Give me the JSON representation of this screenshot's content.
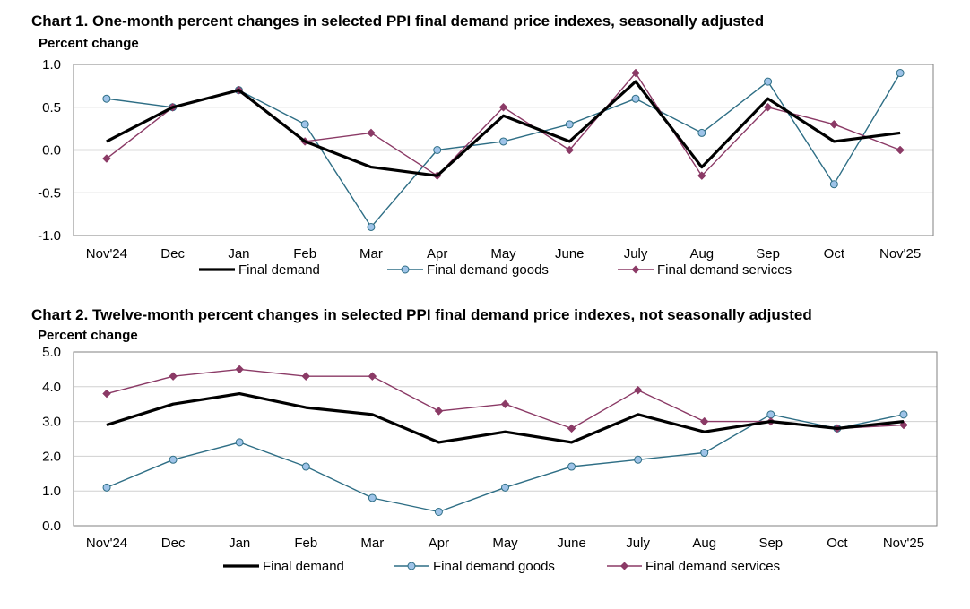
{
  "colors": {
    "final_demand": "#000000",
    "goods_line": "#2e6e85",
    "goods_marker_fill": "#9ec3e8",
    "services": "#8b3a66",
    "grid": "#d0d0d0",
    "frame": "#808080"
  },
  "chart_data": [
    {
      "type": "line",
      "title": "Chart 1. One-month percent changes in selected PPI final demand price indexes, seasonally adjusted",
      "ylabel": "Percent change",
      "xlabel": "",
      "categories": [
        "Nov'24",
        "Dec",
        "Jan",
        "Feb",
        "Mar",
        "Apr",
        "May",
        "June",
        "July",
        "Aug",
        "Sep",
        "Oct",
        "Nov'25"
      ],
      "ylim": [
        -1.0,
        1.0
      ],
      "yticks": [
        "1.0",
        "0.5",
        "0.0",
        "-0.5",
        "-1.0"
      ],
      "grid": true,
      "legend_position": "bottom",
      "series": [
        {
          "name": "Final demand",
          "values": [
            0.1,
            0.5,
            0.7,
            0.1,
            -0.2,
            -0.3,
            0.4,
            0.1,
            0.8,
            -0.2,
            0.6,
            0.1,
            0.2
          ]
        },
        {
          "name": "Final demand goods",
          "values": [
            0.6,
            0.5,
            0.7,
            0.3,
            -0.9,
            0.0,
            0.1,
            0.3,
            0.6,
            0.2,
            0.8,
            -0.4,
            0.9
          ]
        },
        {
          "name": "Final demand services",
          "values": [
            -0.1,
            0.5,
            0.7,
            0.1,
            0.2,
            -0.3,
            0.5,
            0.0,
            0.9,
            -0.3,
            0.5,
            0.3,
            0.0
          ]
        }
      ]
    },
    {
      "type": "line",
      "title": "Chart 2. Twelve-month percent changes in selected PPI final demand price indexes, not seasonally adjusted",
      "ylabel": "Percent change",
      "xlabel": "",
      "categories": [
        "Nov'24",
        "Dec",
        "Jan",
        "Feb",
        "Mar",
        "Apr",
        "May",
        "June",
        "July",
        "Aug",
        "Sep",
        "Oct",
        "Nov'25"
      ],
      "ylim": [
        0.0,
        5.0
      ],
      "yticks": [
        "5.0",
        "4.0",
        "3.0",
        "2.0",
        "1.0",
        "0.0"
      ],
      "grid": true,
      "legend_position": "bottom",
      "series": [
        {
          "name": "Final demand",
          "values": [
            2.9,
            3.5,
            3.8,
            3.4,
            3.2,
            2.4,
            2.7,
            2.4,
            3.2,
            2.7,
            3.0,
            2.8,
            3.0
          ]
        },
        {
          "name": "Final demand goods",
          "values": [
            1.1,
            1.9,
            2.4,
            1.7,
            0.8,
            0.4,
            1.1,
            1.7,
            1.9,
            2.1,
            3.2,
            2.8,
            3.2
          ]
        },
        {
          "name": "Final demand services",
          "values": [
            3.8,
            4.3,
            4.5,
            4.3,
            4.3,
            3.3,
            3.5,
            2.8,
            3.9,
            3.0,
            3.0,
            2.8,
            2.9
          ]
        }
      ]
    }
  ]
}
